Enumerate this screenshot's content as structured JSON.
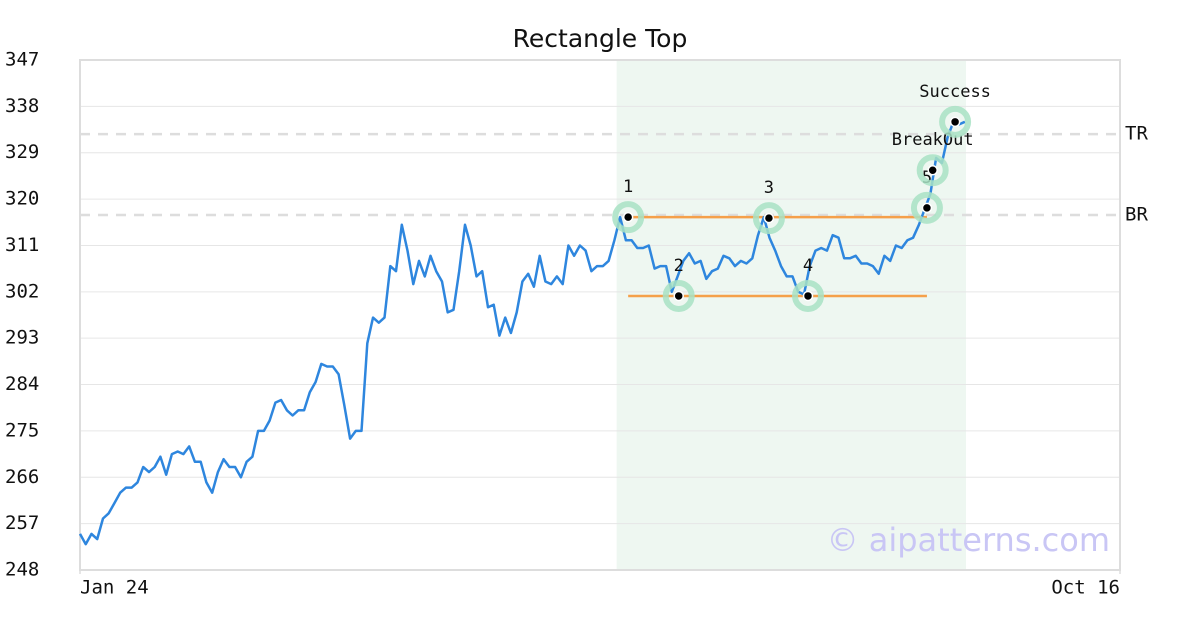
{
  "chart_data": {
    "type": "line",
    "title": "Rectangle Top",
    "series": [
      {
        "color": "#2e86de",
        "values": [
          255,
          253,
          255,
          254,
          258,
          259,
          261,
          263,
          264,
          264,
          265,
          268,
          267,
          268,
          270,
          266.5,
          270.5,
          271,
          270.5,
          272,
          269,
          269,
          265,
          263,
          267,
          269.5,
          268,
          268,
          266,
          269,
          270,
          275,
          275,
          277,
          280.5,
          281,
          279,
          278,
          279,
          279,
          282.5,
          284.5,
          288,
          287.5,
          287.5,
          286,
          280,
          273.5,
          275,
          275,
          292,
          297,
          296,
          297,
          307,
          306,
          315,
          310,
          303.5,
          308,
          305,
          309,
          306,
          304,
          298,
          298.5,
          306,
          315,
          311,
          305,
          306,
          299,
          299.5,
          293.5,
          297,
          294,
          298,
          304,
          305.5,
          303,
          309,
          304,
          303.5,
          305,
          303.5,
          311,
          309,
          311,
          310,
          306,
          307,
          307,
          308,
          312,
          316.5,
          312,
          312,
          310.5,
          310.5,
          311,
          306.5,
          307,
          307,
          302,
          305,
          308,
          309.5,
          307.5,
          308,
          304.5,
          306,
          306.5,
          309,
          308.5,
          307,
          308,
          307.5,
          308.5,
          313,
          316.5,
          312.5,
          310,
          307,
          305,
          305,
          302,
          301.5,
          307,
          310,
          310.5,
          310,
          313,
          312.5,
          308.5,
          308.5,
          309,
          307.5,
          307.5,
          307,
          305.5,
          309,
          308,
          311,
          310.5,
          312,
          312.5,
          315,
          318,
          321,
          328,
          327,
          332,
          335,
          334.5,
          335
        ]
      }
    ],
    "xlim": [
      0,
      181
    ],
    "xticks": [
      {
        "value": 0,
        "label": "Jan 24"
      },
      {
        "value": 181,
        "label": "Oct 16"
      }
    ],
    "ylim": [
      248,
      347
    ],
    "yticks": [
      248,
      257,
      266,
      275,
      284,
      293,
      302,
      311,
      320,
      329,
      338,
      347
    ],
    "grid": true,
    "pattern_region": {
      "x": [
        93.4,
        154.2
      ],
      "color": "#eef7f1"
    },
    "levels": [
      {
        "label": "TR",
        "value": 332.6
      },
      {
        "label": "BR",
        "value": 316.9
      }
    ],
    "lines": [
      {
        "x": [
          95.4,
          147.4
        ],
        "value": 316.5,
        "color": "#f5a04a"
      },
      {
        "x": [
          95.4,
          147.4
        ],
        "value": 301.2,
        "color": "#f5a04a"
      }
    ],
    "points": [
      {
        "label": "1",
        "x": 95.4,
        "value": 316.5
      },
      {
        "label": "2",
        "x": 104.2,
        "value": 301.2
      },
      {
        "label": "3",
        "x": 119.9,
        "value": 316.3
      },
      {
        "label": "4",
        "x": 126.7,
        "value": 301.2
      },
      {
        "label": "5",
        "x": 147.4,
        "value": 318.3
      },
      {
        "label": "BreakOut",
        "x": 148.4,
        "value": 325.6
      },
      {
        "label": "Success",
        "x": 152.3,
        "value": 335
      }
    ],
    "watermark": "© aipatterns.com"
  }
}
